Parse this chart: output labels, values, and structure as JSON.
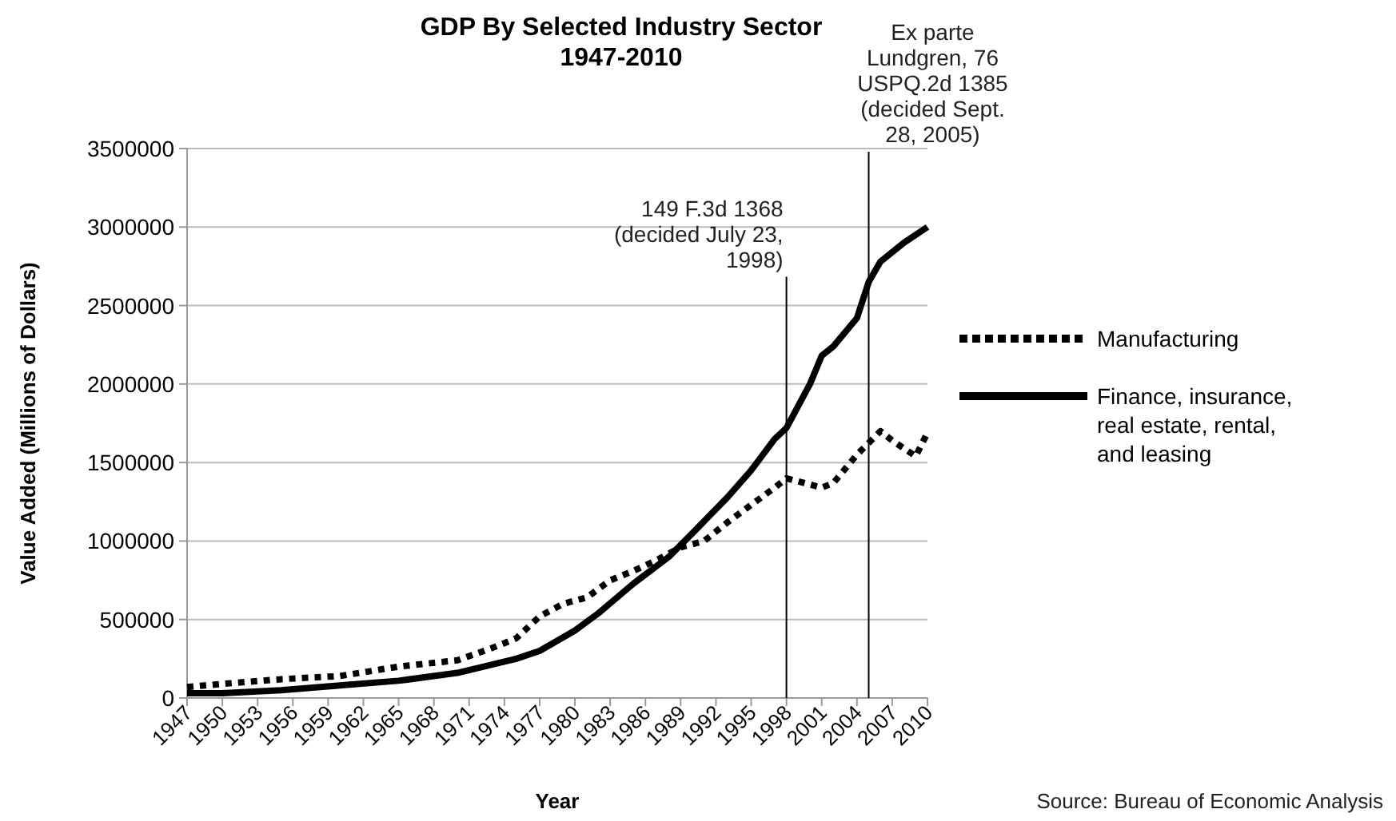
{
  "chart_data": {
    "type": "line",
    "title": "GDP By Selected Industry Sector\n1947-2010",
    "xlabel": "Year",
    "ylabel": "Value Added (Millions of Dollars)",
    "xlim": [
      1947,
      2010
    ],
    "xticks": [
      1947,
      1950,
      1953,
      1956,
      1959,
      1962,
      1965,
      1968,
      1971,
      1974,
      1977,
      1980,
      1983,
      1986,
      1989,
      1992,
      1995,
      1998,
      2001,
      2004,
      2007,
      2010
    ],
    "ylim": [
      0,
      3500000
    ],
    "yticks": [
      0,
      500000,
      1000000,
      1500000,
      2000000,
      2500000,
      3000000,
      3500000
    ],
    "grid": "y",
    "legend": "right",
    "series": [
      {
        "name": "Manufacturing",
        "color": "#000000",
        "line_style": "dotted",
        "x": [
          1947,
          1950,
          1955,
          1960,
          1965,
          1970,
          1973,
          1975,
          1977,
          1979,
          1981,
          1983,
          1985,
          1987,
          1989,
          1991,
          1993,
          1995,
          1997,
          1998,
          1999,
          2001,
          2002,
          2004,
          2006,
          2007,
          2009,
          2010
        ],
        "values": [
          70000,
          90000,
          120000,
          140000,
          200000,
          240000,
          320000,
          380000,
          520000,
          600000,
          640000,
          750000,
          810000,
          880000,
          960000,
          1000000,
          1120000,
          1230000,
          1340000,
          1400000,
          1380000,
          1340000,
          1370000,
          1550000,
          1700000,
          1640000,
          1540000,
          1690000
        ]
      },
      {
        "name": "Finance, insurance, real estate, rental, and leasing",
        "color": "#000000",
        "line_style": "solid",
        "x": [
          1947,
          1950,
          1955,
          1960,
          1965,
          1970,
          1975,
          1977,
          1980,
          1982,
          1985,
          1988,
          1990,
          1993,
          1995,
          1997,
          1998,
          2000,
          2001,
          2002,
          2004,
          2005,
          2006,
          2008,
          2010
        ],
        "values": [
          30000,
          30000,
          50000,
          80000,
          110000,
          160000,
          250000,
          300000,
          430000,
          540000,
          730000,
          900000,
          1050000,
          1280000,
          1450000,
          1650000,
          1720000,
          2000000,
          2180000,
          2240000,
          2420000,
          2650000,
          2780000,
          2900000,
          3000000
        ]
      }
    ],
    "ref_lines": [
      {
        "axis": "x",
        "value": 1998,
        "label": "149 F.3d 1368 (decided July 23, 1998)",
        "color": "#000000"
      },
      {
        "axis": "x",
        "value": 2005,
        "label": "Ex parte Lundgren, 76 USPQ.2d 1385 (decided Sept. 28, 2005)",
        "color": "#000000"
      }
    ],
    "annotations": [
      "Source: Bureau of Economic Analysis"
    ]
  }
}
